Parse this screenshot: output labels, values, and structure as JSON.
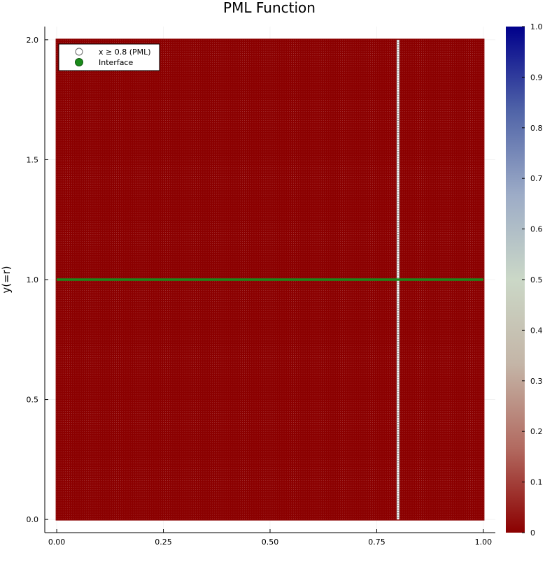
{
  "chart_data": {
    "type": "heatmap",
    "title": "PML Function",
    "xlabel": "",
    "ylabel": "y(=r)",
    "xlim": [
      -0.028,
      1.028
    ],
    "ylim": [
      -0.055,
      2.055
    ],
    "x_ticks": [
      0.0,
      0.25,
      0.5,
      0.75,
      1.0
    ],
    "x_tick_labels": [
      "0.00",
      "0.25",
      "0.50",
      "0.75",
      "1.00"
    ],
    "y_ticks": [
      0.0,
      0.5,
      1.0,
      1.5,
      2.0
    ],
    "y_tick_labels": [
      "0.0",
      "0.5",
      "1.0",
      "1.5",
      "2.0"
    ],
    "grid": true,
    "legend_position": "top-left",
    "grid_x_range": [
      0.0,
      1.0
    ],
    "grid_y_range": [
      0.0,
      2.0
    ],
    "field_value": 0,
    "series": [
      {
        "name": "x ≥ 0.8 (PML)",
        "kind": "scatter-line",
        "x": [
          0.8,
          0.8
        ],
        "y": [
          0.0,
          2.0
        ],
        "marker": "open-circle",
        "color": "#ffffff"
      },
      {
        "name": "Interface",
        "kind": "scatter-line",
        "x": [
          0.0,
          1.0
        ],
        "y": [
          1.0,
          1.0
        ],
        "marker": "filled-circle",
        "color": "#1a8a1a"
      }
    ],
    "colorbar": {
      "range": [
        0,
        1
      ],
      "ticks": [
        0,
        0.1,
        0.2,
        0.3,
        0.4,
        0.5,
        0.6,
        0.7,
        0.8,
        0.9,
        1.0
      ],
      "tick_labels": [
        "0",
        "0.1",
        "0.2",
        "0.3",
        "0.4",
        "0.5",
        "0.6",
        "0.7",
        "0.8",
        "0.9",
        "1.0"
      ],
      "colors": [
        "#8b0000",
        "#b26a60",
        "#c4b5a7",
        "#cbd8c7",
        "#9dacc7",
        "#5064a8",
        "#00008b"
      ]
    }
  }
}
